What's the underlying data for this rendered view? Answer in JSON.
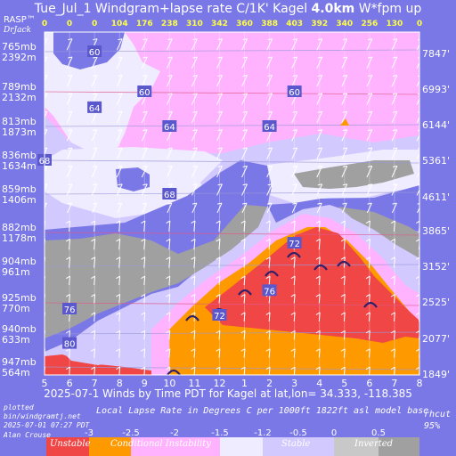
{
  "header": {
    "rasp": "RASP™",
    "drjack": "DrJack",
    "title_prefix": "Tue_Jul_1 Windgram+lapse rate C/1K'  Kagel",
    "title_height": "4.0km",
    "title_suffix": "W*fpm up"
  },
  "top_wstar": [
    "0",
    "0",
    "0",
    "104",
    "176",
    "238",
    "310",
    "342",
    "360",
    "388",
    "403",
    "392",
    "340",
    "256",
    "130",
    "0"
  ],
  "left_labels": [
    {
      "mb": "765mb",
      "m": "2392m"
    },
    {
      "mb": "789mb",
      "m": "2132m"
    },
    {
      "mb": "813mb",
      "m": "1873m"
    },
    {
      "mb": "836mb",
      "m": "1634m"
    },
    {
      "mb": "859mb",
      "m": "1406m"
    },
    {
      "mb": "882mb",
      "m": "1178m"
    },
    {
      "mb": "904mb",
      "m": "961m"
    },
    {
      "mb": "925mb",
      "m": "770m"
    },
    {
      "mb": "940mb",
      "m": "633m"
    },
    {
      "mb": "947mb",
      "m": "564m"
    }
  ],
  "right_labels": [
    "7847'",
    "6993'",
    "6144'",
    "5361'",
    "4611'",
    "3865'",
    "3152'",
    "2525'",
    "2077'",
    "1849'"
  ],
  "caption": "2025-07-1 Winds by Time PDT for Kagel at lat,lon= 34.333, -118.385",
  "footer": {
    "plotted": "plotted",
    "script": "bin/windgramtj.net",
    "date": "2025-07-01 07:27 PDT",
    "author": "Alan Crouse",
    "subtitle": "Local Lapse Rate in Degrees C per 1000ft  1822ft asl model base",
    "rhcut": "rhcut",
    "rhpct": "95%"
  },
  "legend": {
    "unstable": "Unstable",
    "conditional": "Conditional Instability",
    "stable": "Stable",
    "inverted": "Inverted",
    "ticks": [
      "-3",
      "-2.5",
      "-2",
      "-1.5",
      "-1.2",
      "-0.5",
      "0",
      "0.5"
    ]
  },
  "chart_data": {
    "type": "heatmap",
    "x": [
      "5",
      "6",
      "7",
      "8",
      "9",
      "10",
      "11",
      "12",
      "1",
      "2",
      "3",
      "4",
      "5",
      "6",
      "7",
      "8"
    ],
    "wstar_fpm": [
      0,
      0,
      0,
      104,
      176,
      238,
      310,
      342,
      360,
      388,
      403,
      392,
      340,
      256,
      130,
      0
    ],
    "pressure_levels_mb": [
      765,
      789,
      813,
      836,
      859,
      882,
      904,
      925,
      940,
      947
    ],
    "heights_m": [
      2392,
      2132,
      1873,
      1634,
      1406,
      1178,
      961,
      770,
      633,
      564
    ],
    "heights_ft": [
      7847,
      6993,
      6144,
      5361,
      4611,
      3865,
      3152,
      2525,
      2077,
      1849
    ],
    "wind_speed_labels": [
      {
        "time": "9",
        "level_mb": 789,
        "value": "60"
      },
      {
        "time": "3",
        "level_mb": 789,
        "value": "60"
      },
      {
        "time": "7",
        "level_mb": 765,
        "value": "60"
      },
      {
        "time": "10",
        "level_mb": 813,
        "value": "64"
      },
      {
        "time": "2",
        "level_mb": 813,
        "value": "64"
      },
      {
        "time": "7",
        "level_mb": 800,
        "value": "64"
      },
      {
        "time": "5",
        "level_mb": 836,
        "value": "68"
      },
      {
        "time": "10",
        "level_mb": 859,
        "value": "68"
      },
      {
        "time": "3",
        "level_mb": 889,
        "value": "72"
      },
      {
        "time": "2",
        "level_mb": 918,
        "value": "76"
      },
      {
        "time": "12",
        "level_mb": 931,
        "value": "72"
      },
      {
        "time": "6",
        "level_mb": 928,
        "value": "76"
      },
      {
        "time": "6",
        "level_mb": 942,
        "value": "80"
      }
    ],
    "lapse_rate_colorscale": {
      "breaks": [
        -3,
        -2.5,
        -2,
        -1.5,
        -1.2,
        -0.5,
        0,
        0.5
      ],
      "categories": [
        "Unstable",
        "Conditional Instability",
        "Stable",
        "Inverted"
      ]
    },
    "xlabel": "2025-07-1 Winds by Time PDT for Kagel at lat,lon= 34.333, -118.385",
    "ylabel_left": "mb / m",
    "ylabel_right": "ft"
  },
  "colors": {
    "background": "#7a78e6",
    "unstable": "#f04646",
    "conditional": "#ff9900",
    "lapse_m2": "#ffb3ff",
    "stable_light": "#f0ecff",
    "stable": "#d2c9ff",
    "inverted": "#a0a0a0",
    "text_yellow": "#ffff44"
  }
}
